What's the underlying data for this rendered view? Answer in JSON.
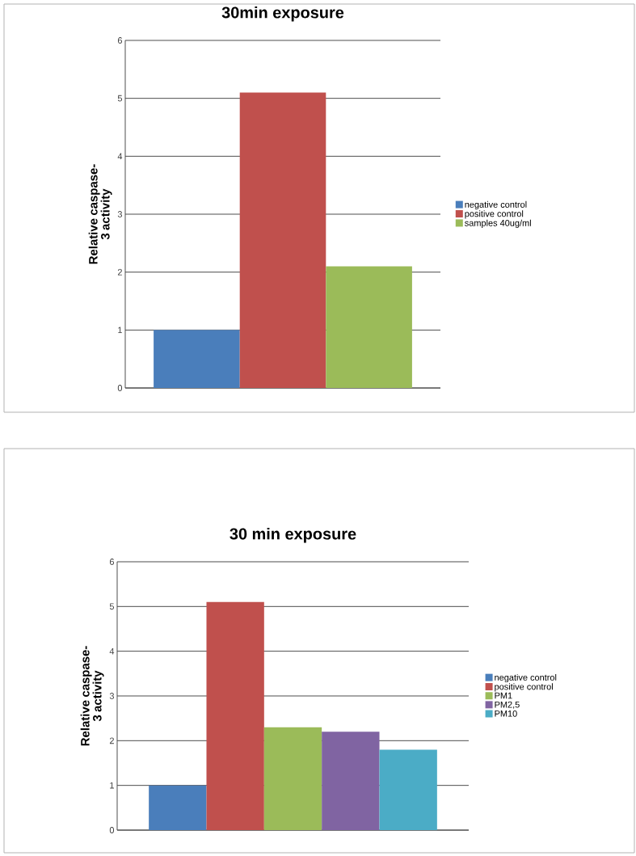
{
  "chart_data": [
    {
      "type": "bar",
      "title": "30min exposure",
      "ylabel": "Relative caspase-3 activity",
      "categories": [
        null
      ],
      "series": [
        {
          "name": "negative control",
          "color": "#4a7ebb",
          "values": [
            1.0
          ]
        },
        {
          "name": "positive control",
          "color": "#c0504d",
          "values": [
            5.1
          ]
        },
        {
          "name": "samples 40ug/ml",
          "color": "#9bbb59",
          "values": [
            2.1
          ]
        }
      ],
      "ylim": [
        0,
        6
      ],
      "yticks": [
        0,
        1,
        2,
        3,
        4,
        5,
        6
      ],
      "grid": "y",
      "legend": "right"
    },
    {
      "type": "bar",
      "title": "30 min exposure",
      "ylabel": "Relative caspase-3 activity",
      "categories": [
        null
      ],
      "series": [
        {
          "name": "negative control",
          "color": "#4a7ebb",
          "values": [
            1.0
          ]
        },
        {
          "name": "positive control",
          "color": "#c0504d",
          "values": [
            5.1
          ]
        },
        {
          "name": "PM1",
          "color": "#9bbb59",
          "values": [
            2.3
          ]
        },
        {
          "name": "PM2,5",
          "color": "#8064a2",
          "values": [
            2.2
          ]
        },
        {
          "name": "PM10",
          "color": "#4bacc6",
          "values": [
            1.8
          ]
        }
      ],
      "ylim": [
        0,
        6
      ],
      "yticks": [
        0,
        1,
        2,
        3,
        4,
        5,
        6
      ],
      "grid": "y",
      "legend": "right"
    }
  ]
}
